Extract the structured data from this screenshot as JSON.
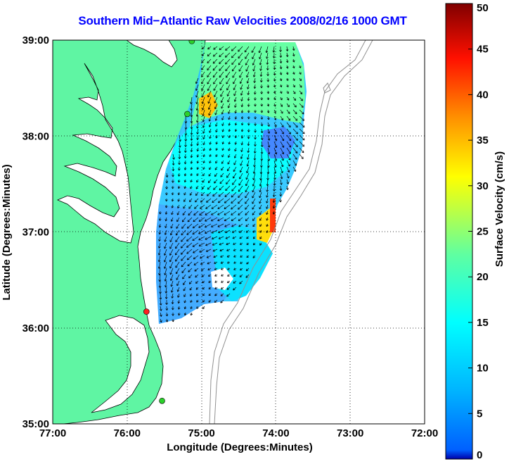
{
  "title": "Southern Mid−Atlantic Raw Velocities 2008/02/16 1000 GMT",
  "map": {
    "xlabel": "Longitude (Degrees:Minutes)",
    "ylabel": "Latitude (Degrees:Minutes)",
    "lon_range": [
      -77,
      -72
    ],
    "lat_range": [
      35,
      39
    ],
    "lon_ticks": [
      "77:00",
      "76:00",
      "75:00",
      "74:00",
      "73:00",
      "72:00"
    ],
    "lat_ticks": [
      "35:00",
      "36:00",
      "37:00",
      "38:00",
      "39:00"
    ],
    "grid": "dotted",
    "land_color": "#5ff5a3",
    "sites": [
      {
        "lon": -75.13,
        "lat": 38.99,
        "color": "#2bd12b"
      },
      {
        "lon": -75.19,
        "lat": 38.23,
        "color": "#2bd12b"
      },
      {
        "lon": -75.74,
        "lat": 36.17,
        "color": "#ff2020"
      },
      {
        "lon": -75.53,
        "lat": 35.24,
        "color": "#2bd12b"
      }
    ]
  },
  "colorbar": {
    "label": "Surface Velocity (cm/s)",
    "min": 0,
    "max": 50,
    "ticks": [
      "0",
      "5",
      "10",
      "15",
      "20",
      "25",
      "30",
      "35",
      "40",
      "45",
      "50"
    ],
    "colormap": "jet"
  }
}
